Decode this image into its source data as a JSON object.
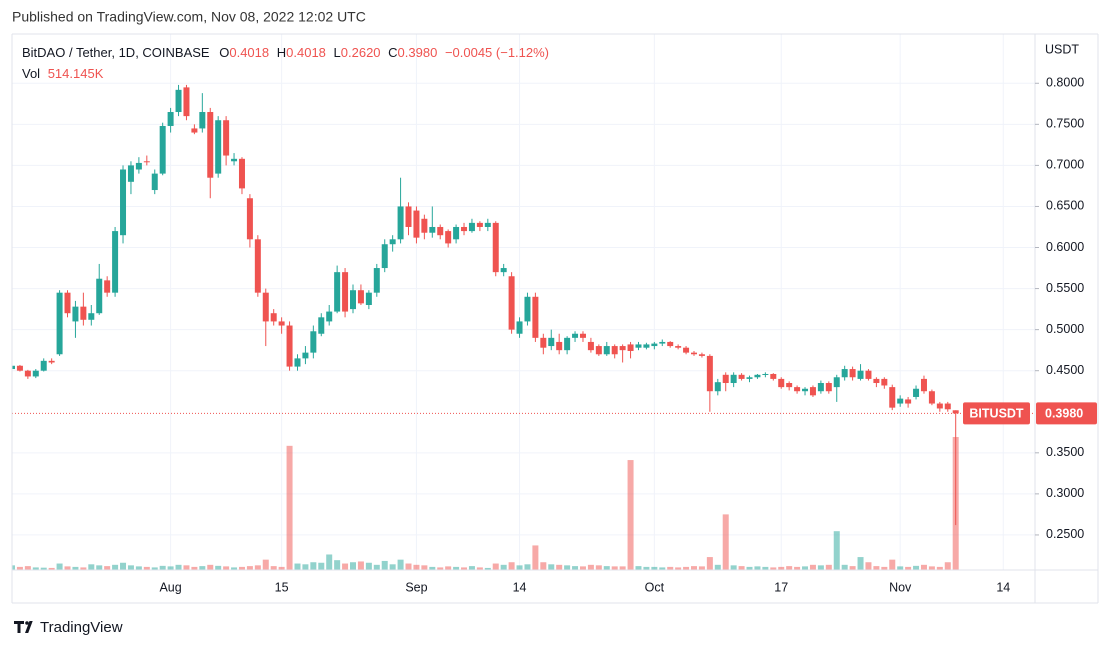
{
  "header": {
    "published": "Published on TradingView.com, Nov 08, 2022 12:02 UTC"
  },
  "footer": {
    "brand": "TradingView"
  },
  "chart_data": {
    "type": "candlestick",
    "symbol": "BitDAO / Tether, 1D, COINBASE",
    "ohlc_legend": [
      {
        "label": "O",
        "value": "0.4018"
      },
      {
        "label": "H",
        "value": "0.4018"
      },
      {
        "label": "L",
        "value": "0.2620"
      },
      {
        "label": "C",
        "value": "0.3980"
      }
    ],
    "change": "−0.0045 (−1.12%)",
    "volume_title": "Vol",
    "volume_label": "514.145K",
    "currency": "USDT",
    "symbol_tag": "BITUSDT",
    "last_price_label": "0.3980",
    "up_color": "#26a69a",
    "down_color": "#ef5350",
    "grid": true,
    "x": [
      "07-12",
      "07-13",
      "07-14",
      "07-15",
      "07-16",
      "07-17",
      "07-18",
      "07-19",
      "07-20",
      "07-21",
      "07-22",
      "07-23",
      "07-24",
      "07-25",
      "07-26",
      "07-27",
      "07-28",
      "07-29",
      "07-30",
      "07-31",
      "08-01",
      "08-02",
      "08-03",
      "08-04",
      "08-05",
      "08-06",
      "08-07",
      "08-08",
      "08-09",
      "08-10",
      "08-11",
      "08-12",
      "08-13",
      "08-14",
      "08-15",
      "08-16",
      "08-17",
      "08-18",
      "08-19",
      "08-20",
      "08-21",
      "08-22",
      "08-23",
      "08-24",
      "08-25",
      "08-26",
      "08-27",
      "08-28",
      "08-29",
      "08-30",
      "08-31",
      "09-01",
      "09-02",
      "09-03",
      "09-04",
      "09-05",
      "09-06",
      "09-07",
      "09-08",
      "09-09",
      "09-10",
      "09-11",
      "09-12",
      "09-13",
      "09-14",
      "09-15",
      "09-16",
      "09-17",
      "09-18",
      "09-19",
      "09-20",
      "09-21",
      "09-22",
      "09-23",
      "09-24",
      "09-25",
      "09-26",
      "09-27",
      "09-28",
      "09-29",
      "09-30",
      "10-01",
      "10-02",
      "10-03",
      "10-04",
      "10-05",
      "10-06",
      "10-07",
      "10-08",
      "10-09",
      "10-10",
      "10-11",
      "10-12",
      "10-13",
      "10-14",
      "10-15",
      "10-16",
      "10-17",
      "10-18",
      "10-19",
      "10-20",
      "10-21",
      "10-22",
      "10-23",
      "10-24",
      "10-25",
      "10-26",
      "10-27",
      "10-28",
      "10-29",
      "10-30",
      "10-31",
      "11-01",
      "11-02",
      "11-03",
      "11-04",
      "11-05",
      "11-06",
      "11-07",
      "11-08"
    ],
    "open": [
      0.452,
      0.456,
      0.45,
      0.443,
      0.45,
      0.462,
      0.47,
      0.545,
      0.51,
      0.528,
      0.512,
      0.52,
      0.56,
      0.545,
      0.615,
      0.68,
      0.695,
      0.705,
      0.67,
      0.69,
      0.748,
      0.765,
      0.795,
      0.745,
      0.745,
      0.765,
      0.69,
      0.755,
      0.705,
      0.708,
      0.66,
      0.61,
      0.545,
      0.52,
      0.51,
      0.505,
      0.455,
      0.465,
      0.472,
      0.495,
      0.51,
      0.522,
      0.57,
      0.525,
      0.548,
      0.53,
      0.545,
      0.575,
      0.604,
      0.61,
      0.65,
      0.645,
      0.635,
      0.618,
      0.625,
      0.62,
      0.61,
      0.625,
      0.62,
      0.63,
      0.625,
      0.63,
      0.57,
      0.565,
      0.495,
      0.51,
      0.54,
      0.49,
      0.48,
      0.485,
      0.475,
      0.49,
      0.495,
      0.485,
      0.48,
      0.47,
      0.48,
      0.48,
      0.482,
      0.478,
      0.478,
      0.48,
      0.483,
      0.485,
      0.48,
      0.478,
      0.472,
      0.47,
      0.468,
      0.425,
      0.445,
      0.435,
      0.445,
      0.44,
      0.442,
      0.445,
      0.446,
      0.44,
      0.435,
      0.43,
      0.425,
      0.43,
      0.425,
      0.435,
      0.43,
      0.442,
      0.452,
      0.44,
      0.45,
      0.44,
      0.44,
      0.43,
      0.41,
      0.415,
      0.418,
      0.44,
      0.425,
      0.41,
      0.41,
      0.4018
    ],
    "high": [
      0.458,
      0.457,
      0.451,
      0.452,
      0.465,
      0.465,
      0.548,
      0.548,
      0.535,
      0.545,
      0.53,
      0.58,
      0.565,
      0.625,
      0.7,
      0.705,
      0.71,
      0.712,
      0.695,
      0.752,
      0.77,
      0.798,
      0.798,
      0.75,
      0.788,
      0.77,
      0.76,
      0.76,
      0.715,
      0.71,
      0.665,
      0.615,
      0.55,
      0.525,
      0.515,
      0.51,
      0.47,
      0.48,
      0.505,
      0.52,
      0.53,
      0.578,
      0.575,
      0.555,
      0.555,
      0.548,
      0.58,
      0.61,
      0.615,
      0.685,
      0.655,
      0.65,
      0.64,
      0.65,
      0.628,
      0.622,
      0.628,
      0.63,
      0.635,
      0.632,
      0.635,
      0.632,
      0.58,
      0.57,
      0.515,
      0.545,
      0.545,
      0.495,
      0.5,
      0.495,
      0.492,
      0.498,
      0.498,
      0.49,
      0.482,
      0.485,
      0.482,
      0.482,
      0.485,
      0.485,
      0.484,
      0.485,
      0.488,
      0.486,
      0.482,
      0.48,
      0.474,
      0.472,
      0.47,
      0.44,
      0.448,
      0.448,
      0.447,
      0.444,
      0.446,
      0.448,
      0.447,
      0.442,
      0.437,
      0.432,
      0.43,
      0.432,
      0.438,
      0.437,
      0.445,
      0.456,
      0.455,
      0.458,
      0.452,
      0.442,
      0.442,
      0.433,
      0.42,
      0.418,
      0.432,
      0.444,
      0.427,
      0.412,
      0.412,
      0.4018
    ],
    "low": [
      0.45,
      0.449,
      0.44,
      0.441,
      0.449,
      0.458,
      0.468,
      0.515,
      0.49,
      0.505,
      0.505,
      0.518,
      0.54,
      0.54,
      0.605,
      0.665,
      0.69,
      0.7,
      0.665,
      0.688,
      0.74,
      0.76,
      0.755,
      0.738,
      0.74,
      0.66,
      0.685,
      0.7,
      0.7,
      0.665,
      0.6,
      0.54,
      0.48,
      0.505,
      0.495,
      0.45,
      0.45,
      0.458,
      0.465,
      0.492,
      0.505,
      0.52,
      0.515,
      0.52,
      0.53,
      0.525,
      0.54,
      0.57,
      0.595,
      0.605,
      0.615,
      0.605,
      0.61,
      0.612,
      0.61,
      0.6,
      0.605,
      0.615,
      0.618,
      0.62,
      0.62,
      0.565,
      0.565,
      0.495,
      0.49,
      0.505,
      0.485,
      0.47,
      0.475,
      0.47,
      0.47,
      0.485,
      0.485,
      0.472,
      0.468,
      0.468,
      0.465,
      0.46,
      0.465,
      0.475,
      0.476,
      0.476,
      0.48,
      0.478,
      0.476,
      0.47,
      0.468,
      0.466,
      0.4,
      0.42,
      0.425,
      0.43,
      0.438,
      0.436,
      0.44,
      0.442,
      0.438,
      0.428,
      0.426,
      0.422,
      0.42,
      0.418,
      0.422,
      0.422,
      0.412,
      0.438,
      0.438,
      0.438,
      0.438,
      0.43,
      0.428,
      0.402,
      0.406,
      0.405,
      0.415,
      0.422,
      0.408,
      0.4,
      0.4,
      0.262
    ],
    "close": [
      0.456,
      0.45,
      0.443,
      0.45,
      0.462,
      0.46,
      0.545,
      0.52,
      0.528,
      0.512,
      0.52,
      0.562,
      0.545,
      0.62,
      0.695,
      0.7,
      0.703,
      0.704,
      0.69,
      0.748,
      0.765,
      0.792,
      0.76,
      0.74,
      0.765,
      0.685,
      0.755,
      0.712,
      0.708,
      0.672,
      0.61,
      0.545,
      0.51,
      0.51,
      0.505,
      0.455,
      0.465,
      0.472,
      0.498,
      0.515,
      0.522,
      0.57,
      0.522,
      0.548,
      0.532,
      0.545,
      0.575,
      0.604,
      0.61,
      0.65,
      0.625,
      0.612,
      0.618,
      0.625,
      0.615,
      0.605,
      0.625,
      0.62,
      0.63,
      0.625,
      0.63,
      0.57,
      0.575,
      0.5,
      0.51,
      0.54,
      0.49,
      0.478,
      0.49,
      0.475,
      0.49,
      0.495,
      0.49,
      0.475,
      0.47,
      0.48,
      0.47,
      0.475,
      0.474,
      0.482,
      0.482,
      0.483,
      0.485,
      0.48,
      0.478,
      0.472,
      0.47,
      0.468,
      0.425,
      0.436,
      0.435,
      0.445,
      0.44,
      0.442,
      0.445,
      0.446,
      0.44,
      0.43,
      0.43,
      0.425,
      0.428,
      0.42,
      0.435,
      0.425,
      0.442,
      0.452,
      0.442,
      0.45,
      0.44,
      0.435,
      0.432,
      0.405,
      0.416,
      0.41,
      0.428,
      0.425,
      0.41,
      0.404,
      0.403,
      0.398
    ],
    "volume": [
      18000,
      12000,
      15000,
      10000,
      9000,
      8000,
      25000,
      14000,
      12000,
      10000,
      22000,
      18000,
      15000,
      20000,
      28000,
      18000,
      14000,
      12000,
      10000,
      16000,
      14000,
      20000,
      18000,
      12000,
      15000,
      20000,
      16000,
      14000,
      10000,
      12000,
      15000,
      18000,
      40000,
      15000,
      12000,
      480000,
      25000,
      22000,
      30000,
      28000,
      60000,
      38000,
      25000,
      30000,
      33000,
      28000,
      20000,
      35000,
      22000,
      40000,
      25000,
      20000,
      18000,
      12000,
      10000,
      14000,
      12000,
      10000,
      15000,
      10000,
      8000,
      25000,
      20000,
      30000,
      18000,
      22000,
      95000,
      30000,
      22000,
      20000,
      18000,
      15000,
      14000,
      20000,
      18000,
      15000,
      14000,
      14000,
      425000,
      15000,
      12000,
      12000,
      10000,
      12000,
      10000,
      12000,
      15000,
      14000,
      50000,
      20000,
      215000,
      18000,
      15000,
      12000,
      14000,
      12000,
      10000,
      12000,
      15000,
      12000,
      14000,
      20000,
      18000,
      20000,
      150000,
      20000,
      15000,
      50000,
      30000,
      15000,
      12000,
      40000,
      14000,
      12000,
      16000,
      20000,
      14000,
      12000,
      30000,
      514145
    ],
    "xlim": [
      "07-12",
      "11-18"
    ],
    "xticks": [
      {
        "value": "08-01",
        "label": "Aug"
      },
      {
        "value": "08-15",
        "label": "15"
      },
      {
        "value": "09-01",
        "label": "Sep"
      },
      {
        "value": "09-14",
        "label": "14"
      },
      {
        "value": "10-01",
        "label": "Oct"
      },
      {
        "value": "10-17",
        "label": "17"
      },
      {
        "value": "11-01",
        "label": "Nov"
      },
      {
        "value": "11-14",
        "label": "14"
      }
    ],
    "ylim": [
      0.2073,
      0.86
    ],
    "yticks": [
      {
        "value": 0.8,
        "label": "0.8000"
      },
      {
        "value": 0.75,
        "label": "0.7500"
      },
      {
        "value": 0.7,
        "label": "0.7000"
      },
      {
        "value": 0.65,
        "label": "0.6500"
      },
      {
        "value": 0.6,
        "label": "0.6000"
      },
      {
        "value": 0.55,
        "label": "0.5500"
      },
      {
        "value": 0.5,
        "label": "0.5000"
      },
      {
        "value": 0.45,
        "label": "0.4500"
      },
      {
        "value": 0.35,
        "label": "0.3500"
      },
      {
        "value": 0.3,
        "label": "0.3000"
      },
      {
        "value": 0.25,
        "label": "0.2500"
      }
    ]
  }
}
